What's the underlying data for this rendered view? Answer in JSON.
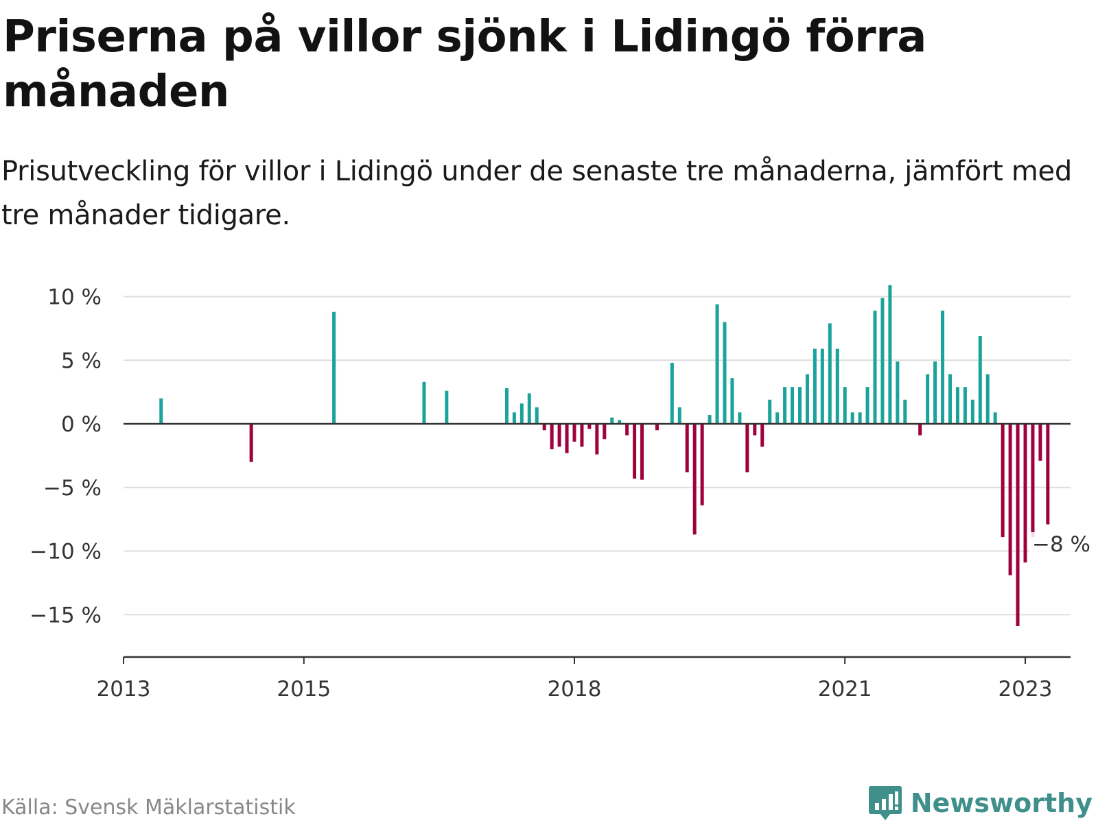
{
  "title": "Priserna på villor sjönk i Lidingö förra månaden",
  "subtitle": "Prisutveckling för villor i Lidingö under de senaste tre månaderna, jämfört med tre månader tidigare.",
  "source": "Källa: Svensk Mäklarstatistik",
  "brand": "Newsworthy",
  "colors": {
    "positive": "#1aa39a",
    "negative": "#a0003c",
    "grid": "#dddddd",
    "axis": "#333333",
    "brand": "#3f8f8a"
  },
  "chart_data": {
    "type": "bar",
    "x_axis": {
      "ticks": [
        "2013",
        "2015",
        "2018",
        "2021",
        "2023"
      ],
      "range": [
        "2013-01",
        "2023-06"
      ]
    },
    "y_axis": {
      "ticks": [
        "10 %",
        "5 %",
        "0 %",
        "−5 %",
        "−10 %",
        "−15 %"
      ],
      "range": [
        -18,
        11
      ]
    },
    "grid": true,
    "annotation": {
      "label": "−8 %",
      "x": "2023-01",
      "y": -7.8
    },
    "points": [
      {
        "x": "2013-06",
        "y": 2.0
      },
      {
        "x": "2014-06",
        "y": -3.0
      },
      {
        "x": "2015-05",
        "y": 8.8
      },
      {
        "x": "2016-05",
        "y": 3.3
      },
      {
        "x": "2016-08",
        "y": 2.6
      },
      {
        "x": "2017-04",
        "y": 2.8
      },
      {
        "x": "2017-05",
        "y": 0.9
      },
      {
        "x": "2017-06",
        "y": 1.6
      },
      {
        "x": "2017-07",
        "y": 2.4
      },
      {
        "x": "2017-08",
        "y": 1.3
      },
      {
        "x": "2017-09",
        "y": -0.5
      },
      {
        "x": "2017-10",
        "y": -2.0
      },
      {
        "x": "2017-11",
        "y": -1.8
      },
      {
        "x": "2017-12",
        "y": -2.3
      },
      {
        "x": "2018-01",
        "y": -1.4
      },
      {
        "x": "2018-02",
        "y": -1.8
      },
      {
        "x": "2018-03",
        "y": -0.4
      },
      {
        "x": "2018-04",
        "y": -2.4
      },
      {
        "x": "2018-05",
        "y": -1.2
      },
      {
        "x": "2018-06",
        "y": 0.5
      },
      {
        "x": "2018-07",
        "y": 0.3
      },
      {
        "x": "2018-08",
        "y": -0.9
      },
      {
        "x": "2018-09",
        "y": -4.3
      },
      {
        "x": "2018-10",
        "y": -4.4
      },
      {
        "x": "2018-12",
        "y": -0.5
      },
      {
        "x": "2019-02",
        "y": 4.8
      },
      {
        "x": "2019-03",
        "y": 1.3
      },
      {
        "x": "2019-04",
        "y": -3.8
      },
      {
        "x": "2019-05",
        "y": -8.7
      },
      {
        "x": "2019-06",
        "y": -6.4
      },
      {
        "x": "2019-07",
        "y": 0.7
      },
      {
        "x": "2019-08",
        "y": 9.4
      },
      {
        "x": "2019-09",
        "y": 8.0
      },
      {
        "x": "2019-10",
        "y": 3.6
      },
      {
        "x": "2019-11",
        "y": 0.9
      },
      {
        "x": "2019-12",
        "y": -3.8
      },
      {
        "x": "2020-01",
        "y": -0.9
      },
      {
        "x": "2020-02",
        "y": -1.8
      },
      {
        "x": "2020-03",
        "y": 1.9
      },
      {
        "x": "2020-04",
        "y": 0.9
      },
      {
        "x": "2020-05",
        "y": 2.9
      },
      {
        "x": "2020-06",
        "y": 2.9
      },
      {
        "x": "2020-07",
        "y": 2.9
      },
      {
        "x": "2020-08",
        "y": 3.9
      },
      {
        "x": "2020-09",
        "y": 5.9
      },
      {
        "x": "2020-10",
        "y": 5.9
      },
      {
        "x": "2020-11",
        "y": 7.9
      },
      {
        "x": "2020-12",
        "y": 5.9
      },
      {
        "x": "2021-01",
        "y": 2.9
      },
      {
        "x": "2021-02",
        "y": 0.9
      },
      {
        "x": "2021-03",
        "y": 0.9
      },
      {
        "x": "2021-04",
        "y": 2.9
      },
      {
        "x": "2021-05",
        "y": 8.9
      },
      {
        "x": "2021-06",
        "y": 9.9
      },
      {
        "x": "2021-07",
        "y": 10.9
      },
      {
        "x": "2021-08",
        "y": 4.9
      },
      {
        "x": "2021-09",
        "y": 1.9
      },
      {
        "x": "2021-11",
        "y": -0.9
      },
      {
        "x": "2021-12",
        "y": 3.9
      },
      {
        "x": "2022-01",
        "y": 4.9
      },
      {
        "x": "2022-02",
        "y": 8.9
      },
      {
        "x": "2022-03",
        "y": 3.9
      },
      {
        "x": "2022-04",
        "y": 2.9
      },
      {
        "x": "2022-05",
        "y": 2.9
      },
      {
        "x": "2022-06",
        "y": 1.9
      },
      {
        "x": "2022-07",
        "y": 6.9
      },
      {
        "x": "2022-08",
        "y": 3.9
      },
      {
        "x": "2022-09",
        "y": 0.9
      },
      {
        "x": "2022-10",
        "y": -8.9
      },
      {
        "x": "2022-11",
        "y": -11.9
      },
      {
        "x": "2022-12",
        "y": -15.9
      },
      {
        "x": "2023-01",
        "y": -10.9
      },
      {
        "x": "2023-02",
        "y": -8.9
      },
      {
        "x": "2023-03",
        "y": -2.9
      },
      {
        "x": "2023-04",
        "y": -7.9
      }
    ]
  }
}
